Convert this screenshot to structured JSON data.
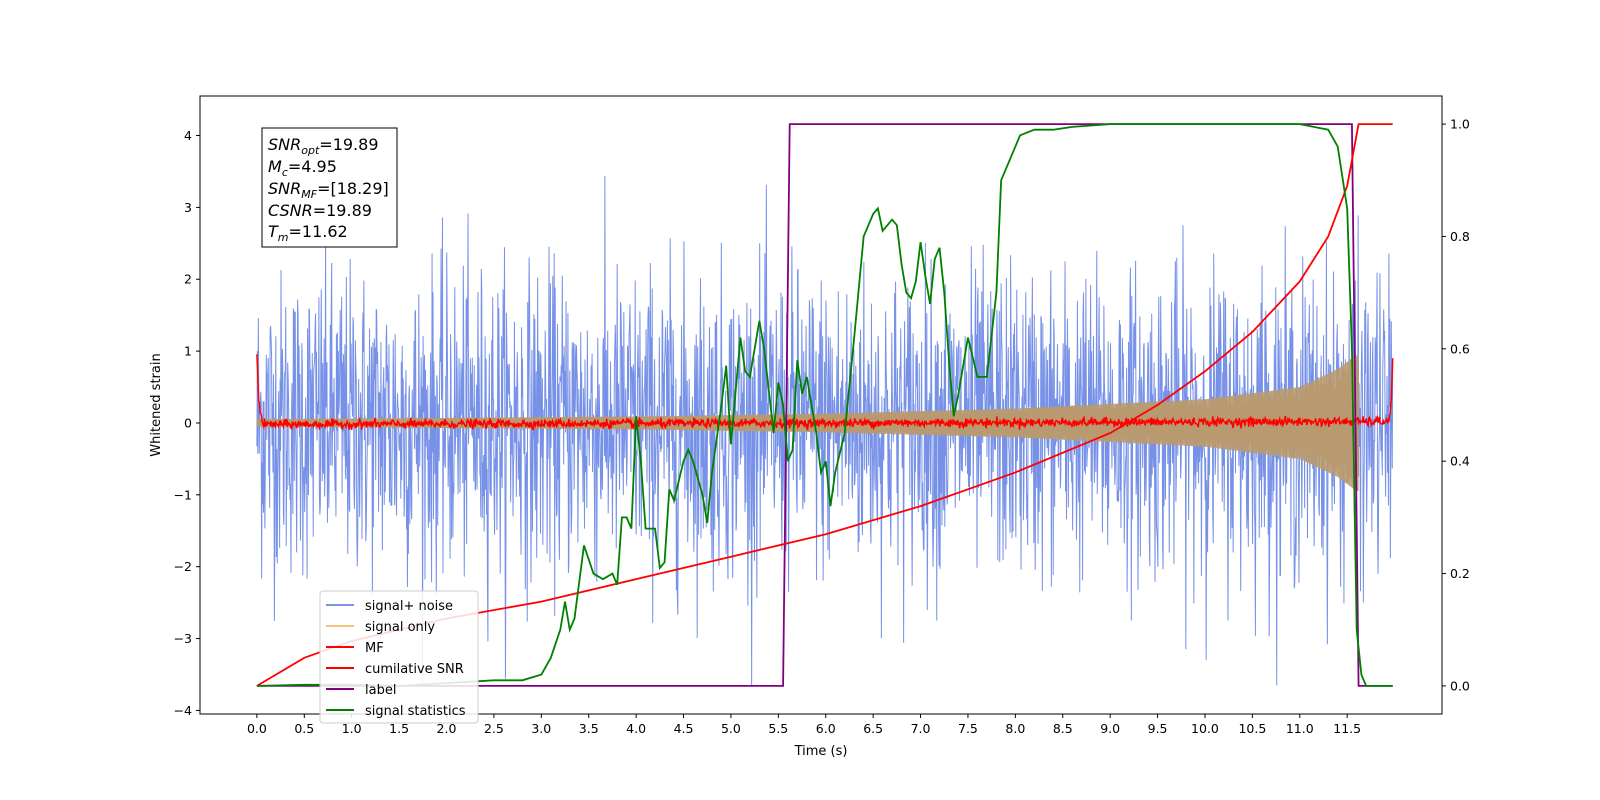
{
  "chart_data": {
    "type": "line",
    "xlabel": "Time (s)",
    "ylabel": "Whitened strain",
    "xlim": [
      -0.6,
      12.5
    ],
    "ylim": [
      -4.05,
      4.55
    ],
    "ylim_right": [
      -0.05,
      1.05
    ],
    "x_ticks": [
      "0.0",
      "0.5",
      "1.0",
      "1.5",
      "2.0",
      "2.5",
      "3.0",
      "3.5",
      "4.0",
      "4.5",
      "5.0",
      "5.5",
      "6.0",
      "6.5",
      "7.0",
      "7.5",
      "8.0",
      "8.5",
      "9.0",
      "9.5",
      "10.0",
      "10.5",
      "11.0",
      "11.5"
    ],
    "y_ticks": [
      "4",
      "3",
      "2",
      "1",
      "0",
      "−1",
      "−2",
      "−3",
      "−4"
    ],
    "y_right_ticks": [
      "1.0",
      "0.8",
      "0.6",
      "0.4",
      "0.2",
      "0.0"
    ],
    "legend": {
      "placement": "lower-left",
      "entries": [
        {
          "label": "signal+ noise",
          "color": "#7b93e8"
        },
        {
          "label": "signal only",
          "color": "#f5c67a"
        },
        {
          "label": "MF",
          "color": "#ff0000"
        },
        {
          "label": "cumilative SNR",
          "color": "#ff0000"
        },
        {
          "label": "label",
          "color": "#800080"
        },
        {
          "label": "signal statistics",
          "color": "#008000"
        }
      ]
    },
    "annotations": {
      "snr_opt": {
        "name": "SNR",
        "sub": "opt",
        "value": "=19.89"
      },
      "mc": {
        "name": "M",
        "sub": "c",
        "value": "=4.95"
      },
      "snr_mf": {
        "name": "SNR",
        "sub": "MF",
        "value": "=[18.29]"
      },
      "csnr": {
        "name": "CSNR",
        "sub": "",
        "value": "=19.89"
      },
      "tm": {
        "name": "T",
        "sub": "m",
        "value": "=11.62"
      }
    },
    "series": [
      {
        "name": "signal+ noise",
        "axis": "left",
        "color": "#6f8be6",
        "x_range": [
          0.0,
          11.98
        ],
        "noise_amplitude": 1.05,
        "peak_max": 4.05,
        "peak_min": -3.65
      },
      {
        "name": "signal only",
        "axis": "left",
        "color": "#b89a70",
        "x_range": [
          0.0,
          11.62
        ],
        "envelope": [
          [
            0.0,
            0.05
          ],
          [
            2.0,
            0.07
          ],
          [
            4.0,
            0.09
          ],
          [
            6.0,
            0.13
          ],
          [
            8.0,
            0.2
          ],
          [
            10.0,
            0.33
          ],
          [
            11.0,
            0.5
          ],
          [
            11.4,
            0.75
          ],
          [
            11.6,
            0.95
          ]
        ]
      },
      {
        "name": "MF",
        "axis": "left",
        "color": "#ff0000",
        "x_range": [
          0.0,
          11.98
        ],
        "points": [
          [
            0.0,
            1.0
          ],
          [
            0.02,
            0.3
          ],
          [
            0.06,
            -0.02
          ],
          [
            11.94,
            0.02
          ],
          [
            11.97,
            0.4
          ],
          [
            11.98,
            0.9
          ]
        ],
        "jitter": 0.06
      },
      {
        "name": "cumilative SNR",
        "axis": "right",
        "color": "#ff0000",
        "points": [
          [
            0.0,
            0.0
          ],
          [
            0.5,
            0.05
          ],
          [
            1.0,
            0.08
          ],
          [
            2.0,
            0.12
          ],
          [
            3.0,
            0.15
          ],
          [
            4.0,
            0.19
          ],
          [
            5.0,
            0.23
          ],
          [
            6.0,
            0.27
          ],
          [
            7.0,
            0.32
          ],
          [
            8.0,
            0.38
          ],
          [
            9.0,
            0.45
          ],
          [
            9.5,
            0.5
          ],
          [
            10.0,
            0.56
          ],
          [
            10.5,
            0.63
          ],
          [
            11.0,
            0.72
          ],
          [
            11.3,
            0.8
          ],
          [
            11.5,
            0.89
          ],
          [
            11.62,
            1.0
          ],
          [
            11.98,
            1.0
          ]
        ]
      },
      {
        "name": "label",
        "axis": "right",
        "color": "#800080",
        "points": [
          [
            0.0,
            0.0
          ],
          [
            5.55,
            0.0
          ],
          [
            5.62,
            1.0
          ],
          [
            11.55,
            1.0
          ],
          [
            11.62,
            0.0
          ],
          [
            11.98,
            0.0
          ]
        ]
      },
      {
        "name": "signal statistics",
        "axis": "right",
        "color": "#008000",
        "points": [
          [
            0.0,
            0.0
          ],
          [
            0.5,
            0.002
          ],
          [
            1.0,
            0.002
          ],
          [
            1.5,
            0.0
          ],
          [
            2.0,
            0.005
          ],
          [
            2.5,
            0.01
          ],
          [
            2.8,
            0.01
          ],
          [
            3.0,
            0.02
          ],
          [
            3.1,
            0.05
          ],
          [
            3.2,
            0.1
          ],
          [
            3.25,
            0.15
          ],
          [
            3.3,
            0.1
          ],
          [
            3.35,
            0.12
          ],
          [
            3.45,
            0.25
          ],
          [
            3.55,
            0.2
          ],
          [
            3.65,
            0.19
          ],
          [
            3.75,
            0.2
          ],
          [
            3.8,
            0.18
          ],
          [
            3.85,
            0.3
          ],
          [
            3.9,
            0.3
          ],
          [
            3.95,
            0.28
          ],
          [
            4.0,
            0.48
          ],
          [
            4.05,
            0.4
          ],
          [
            4.1,
            0.28
          ],
          [
            4.2,
            0.28
          ],
          [
            4.25,
            0.21
          ],
          [
            4.3,
            0.22
          ],
          [
            4.35,
            0.35
          ],
          [
            4.4,
            0.33
          ],
          [
            4.5,
            0.4
          ],
          [
            4.55,
            0.42
          ],
          [
            4.6,
            0.4
          ],
          [
            4.7,
            0.34
          ],
          [
            4.75,
            0.29
          ],
          [
            4.8,
            0.38
          ],
          [
            4.9,
            0.5
          ],
          [
            4.95,
            0.57
          ],
          [
            5.0,
            0.43
          ],
          [
            5.1,
            0.62
          ],
          [
            5.15,
            0.56
          ],
          [
            5.2,
            0.55
          ],
          [
            5.3,
            0.65
          ],
          [
            5.35,
            0.6
          ],
          [
            5.45,
            0.45
          ],
          [
            5.5,
            0.54
          ],
          [
            5.55,
            0.5
          ],
          [
            5.6,
            0.4
          ],
          [
            5.65,
            0.42
          ],
          [
            5.7,
            0.58
          ],
          [
            5.75,
            0.52
          ],
          [
            5.8,
            0.55
          ],
          [
            5.85,
            0.5
          ],
          [
            5.9,
            0.45
          ],
          [
            5.95,
            0.38
          ],
          [
            6.0,
            0.4
          ],
          [
            6.05,
            0.32
          ],
          [
            6.1,
            0.38
          ],
          [
            6.2,
            0.45
          ],
          [
            6.3,
            0.62
          ],
          [
            6.4,
            0.8
          ],
          [
            6.5,
            0.84
          ],
          [
            6.55,
            0.85
          ],
          [
            6.6,
            0.81
          ],
          [
            6.7,
            0.83
          ],
          [
            6.75,
            0.82
          ],
          [
            6.8,
            0.75
          ],
          [
            6.85,
            0.7
          ],
          [
            6.9,
            0.69
          ],
          [
            6.95,
            0.72
          ],
          [
            7.0,
            0.79
          ],
          [
            7.05,
            0.73
          ],
          [
            7.1,
            0.68
          ],
          [
            7.15,
            0.76
          ],
          [
            7.2,
            0.78
          ],
          [
            7.25,
            0.7
          ],
          [
            7.3,
            0.58
          ],
          [
            7.35,
            0.48
          ],
          [
            7.4,
            0.52
          ],
          [
            7.5,
            0.62
          ],
          [
            7.6,
            0.55
          ],
          [
            7.7,
            0.55
          ],
          [
            7.8,
            0.7
          ],
          [
            7.85,
            0.9
          ],
          [
            7.9,
            0.92
          ],
          [
            7.95,
            0.94
          ],
          [
            8.0,
            0.96
          ],
          [
            8.05,
            0.98
          ],
          [
            8.2,
            0.99
          ],
          [
            8.4,
            0.99
          ],
          [
            8.6,
            0.995
          ],
          [
            9.0,
            1.0
          ],
          [
            10.0,
            1.0
          ],
          [
            11.0,
            1.0
          ],
          [
            11.3,
            0.99
          ],
          [
            11.4,
            0.96
          ],
          [
            11.5,
            0.85
          ],
          [
            11.55,
            0.6
          ],
          [
            11.6,
            0.1
          ],
          [
            11.65,
            0.02
          ],
          [
            11.7,
            0.0
          ],
          [
            11.98,
            0.0
          ]
        ]
      }
    ]
  }
}
